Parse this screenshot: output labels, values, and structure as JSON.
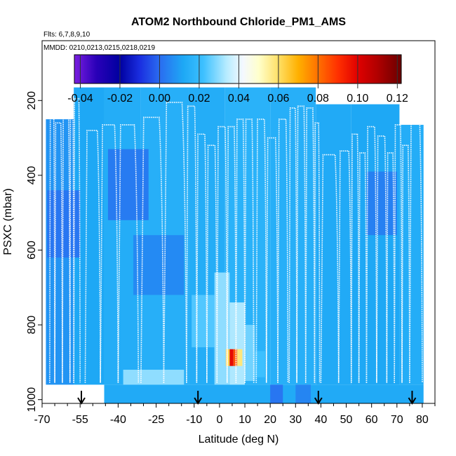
{
  "chart_data": {
    "type": "heatmap",
    "title": "ATOM2 Northbound Chloride_PM1_AMS",
    "flights_label": "Flts: 6,7,8,9,10",
    "dates_label": "MMDD: 0210,0213,0215,0218,0219",
    "xlabel": "Latitude (deg N)",
    "ylabel": "PSXC (mbar)",
    "xlim": [
      -70,
      85
    ],
    "ylim": [
      1010,
      40
    ],
    "x_ticks": [
      -70,
      -55,
      -40,
      -25,
      -10,
      0,
      10,
      20,
      30,
      40,
      50,
      60,
      70,
      80
    ],
    "x_tick_labels": [
      "-70",
      "-55",
      "-40",
      "-25",
      "-10",
      "0",
      "10",
      "20",
      "30",
      "40",
      "50",
      "60",
      "70",
      "80"
    ],
    "y_ticks": [
      200,
      400,
      600,
      800,
      1000
    ],
    "y_tick_labels": [
      "200",
      "400",
      "600",
      "800",
      "1000"
    ],
    "colorbar": {
      "range": [
        -0.043,
        0.122
      ],
      "ticks": [
        -0.04,
        -0.02,
        0.0,
        0.02,
        0.04,
        0.06,
        0.08,
        0.1,
        0.12
      ],
      "tick_labels": [
        "-0.04",
        "-0.02",
        "0.00",
        "0.02",
        "0.04",
        "0.06",
        "0.08",
        "0.10",
        "0.12"
      ],
      "stops": [
        {
          "v": -0.043,
          "c": "#7b1fe0"
        },
        {
          "v": -0.032,
          "c": "#2a00b8"
        },
        {
          "v": -0.02,
          "c": "#0000a0"
        },
        {
          "v": -0.01,
          "c": "#1a2ee0"
        },
        {
          "v": 0.0,
          "c": "#2a6cf0"
        },
        {
          "v": 0.012,
          "c": "#1ea8f5"
        },
        {
          "v": 0.022,
          "c": "#3cc0ff"
        },
        {
          "v": 0.034,
          "c": "#b8ecff"
        },
        {
          "v": 0.042,
          "c": "#f4f8ff"
        },
        {
          "v": 0.05,
          "c": "#ffffcc"
        },
        {
          "v": 0.06,
          "c": "#ffe066"
        },
        {
          "v": 0.07,
          "c": "#ffb000"
        },
        {
          "v": 0.08,
          "c": "#ff7000"
        },
        {
          "v": 0.09,
          "c": "#ff3000"
        },
        {
          "v": 0.1,
          "c": "#e00000"
        },
        {
          "v": 0.11,
          "c": "#b00000"
        },
        {
          "v": 0.122,
          "c": "#6a0000"
        }
      ]
    },
    "arrows_latitude": [
      -54.5,
      -8.5,
      39,
      76
    ],
    "heatmap_blocks": [
      {
        "x0": -68.5,
        "x1": -57.5,
        "p_top": 250,
        "p_bot": 960,
        "v": 0.008
      },
      {
        "x0": -57.5,
        "x1": -45.5,
        "p_top": 165,
        "p_bot": 960,
        "v": 0.012
      },
      {
        "x0": -45.5,
        "x1": -31,
        "p_top": 165,
        "p_bot": 960,
        "v": 0.014
      },
      {
        "x0": -31,
        "x1": -12,
        "p_top": 165,
        "p_bot": 960,
        "v": 0.015
      },
      {
        "x0": -12,
        "x1": 2,
        "p_top": 165,
        "p_bot": 960,
        "v": 0.014
      },
      {
        "x0": 2,
        "x1": 20,
        "p_top": 165,
        "p_bot": 960,
        "v": 0.016
      },
      {
        "x0": 20,
        "x1": 38,
        "p_top": 165,
        "p_bot": 960,
        "v": 0.015
      },
      {
        "x0": 38,
        "x1": 52,
        "p_top": 210,
        "p_bot": 960,
        "v": 0.013
      },
      {
        "x0": 52,
        "x1": 71,
        "p_top": 210,
        "p_bot": 960,
        "v": 0.012
      },
      {
        "x0": 71,
        "x1": 80.5,
        "p_top": 265,
        "p_bot": 960,
        "v": 0.014
      },
      {
        "x0": -45.5,
        "x1": 80.5,
        "p_top": 960,
        "p_bot": 1010,
        "v": 0.013
      },
      {
        "x0": -68,
        "x1": -55,
        "p_top": 440,
        "p_bot": 620,
        "v": 0.002
      },
      {
        "x0": -44,
        "x1": -28,
        "p_top": 330,
        "p_bot": 520,
        "v": 0.003
      },
      {
        "x0": -34,
        "x1": -14,
        "p_top": 560,
        "p_bot": 720,
        "v": 0.006
      },
      {
        "x0": 58,
        "x1": 70,
        "p_top": 390,
        "p_bot": 560,
        "v": 0.004
      },
      {
        "x0": -11,
        "x1": -2,
        "p_top": 720,
        "p_bot": 860,
        "v": 0.024
      },
      {
        "x0": -2,
        "x1": 4,
        "p_top": 660,
        "p_bot": 960,
        "v": 0.03
      },
      {
        "x0": 4,
        "x1": 10,
        "p_top": 740,
        "p_bot": 960,
        "v": 0.033
      },
      {
        "x0": 10,
        "x1": 14,
        "p_top": 800,
        "p_bot": 950,
        "v": 0.027
      },
      {
        "x0": -38,
        "x1": -14,
        "p_top": 920,
        "p_bot": 960,
        "v": 0.03
      },
      {
        "x0": 14,
        "x1": 18,
        "p_top": 870,
        "p_bot": 940,
        "v": 0.022
      },
      {
        "x0": 20,
        "x1": 25,
        "p_top": 960,
        "p_bot": 1010,
        "v": 0.002
      },
      {
        "x0": 30,
        "x1": 36,
        "p_top": 960,
        "p_bot": 1010,
        "v": 0.005
      },
      {
        "x0": 2.5,
        "x1": 4,
        "p_top": 865,
        "p_bot": 910,
        "v": 0.062
      },
      {
        "x0": 4,
        "x1": 5.5,
        "p_top": 865,
        "p_bot": 910,
        "v": 0.098
      },
      {
        "x0": 5.5,
        "x1": 7,
        "p_top": 865,
        "p_bot": 910,
        "v": 0.085
      },
      {
        "x0": 7,
        "x1": 9,
        "p_top": 865,
        "p_bot": 910,
        "v": 0.058
      }
    ],
    "flight_tracks": [
      {
        "x0": -67,
        "x1": -65,
        "p_top": 230
      },
      {
        "x0": -65,
        "x1": -62,
        "p_top": 260
      },
      {
        "x0": -62,
        "x1": -59,
        "p_top": 210
      },
      {
        "x0": -59,
        "x1": -57.5,
        "p_top": 240
      },
      {
        "x0": -57.5,
        "x1": -55,
        "p_top": 195
      },
      {
        "x0": -53,
        "x1": -47,
        "p_top": 280
      },
      {
        "x0": -47,
        "x1": -40,
        "p_top": 265
      },
      {
        "x0": -40,
        "x1": -32,
        "p_top": 265
      },
      {
        "x0": -31,
        "x1": -22,
        "p_top": 245
      },
      {
        "x0": -22,
        "x1": -13,
        "p_top": 205
      },
      {
        "x0": -13,
        "x1": -9,
        "p_top": 215
      },
      {
        "x0": -9,
        "x1": -5,
        "p_top": 290
      },
      {
        "x0": -5,
        "x1": -1,
        "p_top": 320
      },
      {
        "x0": -1,
        "x1": 3,
        "p_top": 270
      },
      {
        "x0": 3,
        "x1": 6.5,
        "p_top": 270
      },
      {
        "x0": 6.5,
        "x1": 10,
        "p_top": 250
      },
      {
        "x0": 10,
        "x1": 13.5,
        "p_top": 250
      },
      {
        "x0": 14.5,
        "x1": 18.5,
        "p_top": 250
      },
      {
        "x0": 18.5,
        "x1": 23,
        "p_top": 300
      },
      {
        "x0": 23,
        "x1": 27,
        "p_top": 250
      },
      {
        "x0": 27.5,
        "x1": 30.5,
        "p_top": 220
      },
      {
        "x0": 30.5,
        "x1": 34,
        "p_top": 215
      },
      {
        "x0": 34,
        "x1": 37.5,
        "p_top": 220
      },
      {
        "x0": 37.5,
        "x1": 39.5,
        "p_top": 260
      },
      {
        "x0": 40,
        "x1": 47,
        "p_top": 345
      },
      {
        "x0": 47,
        "x1": 52,
        "p_top": 335
      },
      {
        "x0": 52,
        "x1": 55,
        "p_top": 290
      },
      {
        "x0": 55,
        "x1": 58,
        "p_top": 340
      },
      {
        "x0": 58,
        "x1": 62,
        "p_top": 270
      },
      {
        "x0": 62,
        "x1": 66,
        "p_top": 295
      },
      {
        "x0": 66,
        "x1": 69,
        "p_top": 340
      },
      {
        "x0": 69,
        "x1": 72,
        "p_top": 265
      },
      {
        "x0": 72,
        "x1": 75,
        "p_top": 320
      },
      {
        "x0": 75,
        "x1": 80,
        "p_top": 260
      }
    ]
  }
}
